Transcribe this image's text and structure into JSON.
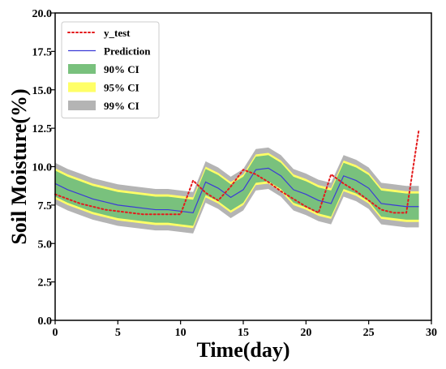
{
  "chart_data": {
    "type": "line",
    "xlabel": "Time(day)",
    "ylabel": "Soil Moisture(%)",
    "xlim": [
      0,
      30
    ],
    "ylim": [
      0,
      20
    ],
    "xticks": [
      0,
      5,
      10,
      15,
      20,
      25,
      30
    ],
    "yticks": [
      0,
      2.5,
      5,
      7.5,
      10,
      12.5,
      15,
      17.5,
      20
    ],
    "xtick_labels": [
      "0",
      "5",
      "10",
      "15",
      "20",
      "25",
      "30"
    ],
    "ytick_labels": [
      "0.0",
      "2.5",
      "5.0",
      "7.5",
      "10.0",
      "12.5",
      "15.0",
      "17.5",
      "20.0"
    ],
    "grid": false,
    "legend_position": "top-left",
    "x": [
      0,
      1,
      2,
      3,
      4,
      5,
      6,
      7,
      8,
      9,
      10,
      11,
      12,
      13,
      14,
      15,
      16,
      17,
      18,
      19,
      20,
      21,
      22,
      23,
      24,
      25,
      26,
      27,
      28,
      29
    ],
    "series": [
      {
        "name": "y_test",
        "style": "dotted",
        "color": "#e41a1c",
        "values": [
          8.2,
          7.9,
          7.6,
          7.4,
          7.2,
          7.1,
          7.0,
          6.9,
          6.9,
          6.9,
          6.9,
          9.1,
          8.3,
          7.8,
          8.7,
          9.8,
          9.5,
          9.0,
          8.4,
          7.9,
          7.4,
          7.0,
          9.5,
          8.9,
          8.4,
          7.8,
          7.2,
          7.0,
          7.0,
          12.4
        ]
      },
      {
        "name": "Prediction",
        "style": "solid",
        "color": "#3b3bd6",
        "values": [
          8.9,
          8.5,
          8.2,
          7.9,
          7.7,
          7.5,
          7.4,
          7.3,
          7.2,
          7.2,
          7.1,
          7.0,
          9.0,
          8.6,
          8.0,
          8.5,
          9.8,
          9.9,
          9.4,
          8.5,
          8.2,
          7.8,
          7.6,
          9.4,
          9.1,
          8.6,
          7.6,
          7.5,
          7.4,
          7.4
        ]
      }
    ],
    "bands": [
      {
        "name": "99% CI",
        "color": "#b4b4b4",
        "width": 1.35
      },
      {
        "name": "95% CI",
        "color": "#ffff66",
        "width": 1.0
      },
      {
        "name": "90% CI",
        "color": "#79c17d",
        "width": 0.85
      }
    ],
    "legend_entries": [
      {
        "label": "y_test",
        "kind": "dotted",
        "color": "#e41a1c"
      },
      {
        "label": "Prediction",
        "kind": "line",
        "color": "#3b3bd6"
      },
      {
        "label": "90% CI",
        "kind": "patch",
        "color": "#79c17d"
      },
      {
        "label": "95% CI",
        "kind": "patch",
        "color": "#ffff66"
      },
      {
        "label": "99% CI",
        "kind": "patch",
        "color": "#b4b4b4"
      }
    ]
  }
}
